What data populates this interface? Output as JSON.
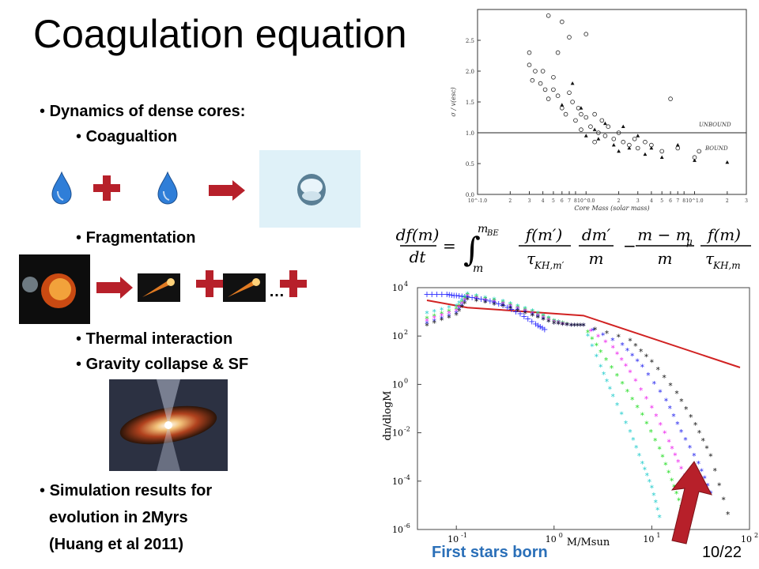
{
  "slide": {
    "title": "Coagulation equation",
    "page": "10/22",
    "bullets": {
      "dynamics": "Dynamics of  dense cores:",
      "coag": "Coagualtion",
      "frag": "Fragmentation",
      "thermal": "Thermal interaction",
      "gravity": "Gravity collapse & SF",
      "sim1": "Simulation results for",
      "sim2": "evolution in 2Myrs",
      "sim3": "(Huang et al 2011)"
    },
    "ellipsis": "…",
    "first_stars": "First stars born",
    "colors": {
      "plus": "#b7202a",
      "arrow": "#b7202a",
      "drop": "#2f7ed8",
      "label": "#2a6fb8"
    }
  },
  "equation": {
    "lhs_num": "df(m)",
    "lhs_den": "dt",
    "int_upper": "m",
    "int_upper_sub": "BE",
    "int_lower": "m",
    "f1_num": "f(m′)",
    "f1_den": "τ",
    "f1_den_sub": "KH,m′",
    "dm_num": "dm′",
    "dm_den": "m",
    "f2_num": "m − m",
    "f2_num_sub": "μ",
    "f2_den": "m",
    "f3_num": "f(m)",
    "f3_den": "τ",
    "f3_den_sub": "KH,m"
  },
  "chart_data": [
    {
      "type": "scatter",
      "xlabel": "Core Mass (solar mass)",
      "ylabel": "σ / v(esc)",
      "xscale": "log",
      "xlim": [
        0.1,
        30
      ],
      "ylim": [
        0,
        3
      ],
      "yticks": [
        "0.0",
        "0.5",
        "1.0",
        "1.5",
        "2.0",
        "2.5"
      ],
      "xtick_labels": [
        "10^-1.0",
        "2",
        "3",
        "4",
        "5",
        "6",
        "7",
        "8",
        "10^0.0",
        "2",
        "3",
        "4",
        "5",
        "6",
        "7",
        "8",
        "10^1.0",
        "2",
        "3"
      ],
      "annotations": [
        "UNBOUND",
        "BOUND"
      ],
      "threshold_y": 1.0,
      "series": [
        {
          "marker": "circle",
          "points": [
            [
              0.3,
              2.3
            ],
            [
              0.3,
              2.1
            ],
            [
              0.32,
              1.85
            ],
            [
              0.34,
              2.0
            ],
            [
              0.38,
              1.8
            ],
            [
              0.4,
              2.0
            ],
            [
              0.42,
              1.7
            ],
            [
              0.45,
              2.9
            ],
            [
              0.45,
              1.55
            ],
            [
              0.5,
              1.9
            ],
            [
              0.55,
              1.6
            ],
            [
              0.6,
              2.8
            ],
            [
              0.6,
              1.4
            ],
            [
              0.65,
              1.3
            ],
            [
              0.7,
              1.65
            ],
            [
              0.75,
              1.5
            ],
            [
              0.8,
              1.2
            ],
            [
              0.85,
              1.4
            ],
            [
              0.9,
              1.3
            ],
            [
              1.0,
              1.25
            ],
            [
              1.1,
              1.1
            ],
            [
              1.2,
              1.3
            ],
            [
              1.3,
              1.0
            ],
            [
              1.4,
              1.2
            ],
            [
              1.5,
              0.95
            ],
            [
              1.6,
              1.1
            ],
            [
              1.8,
              0.9
            ],
            [
              2.0,
              1.0
            ],
            [
              2.2,
              0.85
            ],
            [
              2.5,
              0.8
            ],
            [
              2.8,
              0.9
            ],
            [
              3.0,
              0.75
            ],
            [
              3.5,
              0.85
            ],
            [
              4.0,
              0.8
            ],
            [
              5.0,
              0.7
            ],
            [
              6.0,
              1.55
            ],
            [
              7.0,
              0.75
            ],
            [
              10.0,
              0.6
            ],
            [
              11.0,
              0.7
            ],
            [
              0.55,
              2.3
            ],
            [
              0.7,
              2.55
            ],
            [
              1.0,
              2.6
            ],
            [
              0.5,
              1.7
            ],
            [
              0.9,
              1.05
            ],
            [
              1.2,
              0.85
            ]
          ]
        },
        {
          "marker": "triangle",
          "points": [
            [
              0.75,
              1.8
            ],
            [
              0.9,
              1.4
            ],
            [
              1.0,
              0.95
            ],
            [
              1.3,
              0.9
            ],
            [
              1.5,
              1.15
            ],
            [
              1.8,
              0.8
            ],
            [
              2.2,
              1.1
            ],
            [
              2.5,
              0.75
            ],
            [
              3.0,
              0.95
            ],
            [
              3.5,
              0.65
            ],
            [
              4.0,
              0.75
            ],
            [
              5.0,
              0.6
            ],
            [
              7.0,
              0.8
            ],
            [
              10.0,
              0.55
            ],
            [
              20.0,
              0.52
            ],
            [
              2.0,
              0.7
            ],
            [
              1.2,
              1.05
            ],
            [
              0.6,
              1.45
            ]
          ]
        }
      ]
    },
    {
      "type": "line",
      "xlabel": "M/Msun",
      "ylabel": "dn/dlogM",
      "xscale": "log",
      "yscale": "log",
      "xlim": [
        0.04,
        100
      ],
      "ylim": [
        1e-06,
        10000.0
      ],
      "xticks": [
        0.1,
        1,
        10,
        100
      ],
      "yticks": [
        1e-06,
        0.0001,
        0.01,
        1.0,
        100.0,
        10000.0
      ],
      "x_tick_labels": [
        "10^-1",
        "10^0",
        "10^1",
        "10^2"
      ],
      "y_tick_labels": [
        "10^-6",
        "10^-4",
        "10^-2",
        "10^0",
        "10^2",
        "10^4"
      ],
      "series": [
        {
          "color": "#d12222",
          "marker": "line",
          "x": [
            0.05,
            0.13,
            2,
            80
          ],
          "y": [
            3000,
            1500,
            700,
            5
          ]
        },
        {
          "color": "#2a2aff",
          "marker": "plus",
          "x": [
            0.05,
            0.08,
            0.1,
            0.13,
            0.2,
            0.3,
            0.45,
            0.65,
            0.8
          ],
          "y": [
            5000,
            5000,
            4500,
            4000,
            3000,
            1800,
            800,
            300,
            180
          ]
        },
        {
          "color": "#22cccc",
          "marker": "star",
          "x": [
            0.05,
            0.1,
            0.13,
            0.3,
            0.6,
            1,
            1.5,
            2,
            3,
            4,
            6,
            8,
            10,
            12
          ],
          "y": [
            800,
            1600,
            5000,
            2500,
            1000,
            400,
            250,
            250,
            5,
            0.3,
            0.01,
            0.0005,
            5e-05,
            3e-06
          ]
        },
        {
          "color": "#22dd22",
          "marker": "star",
          "x": [
            0.05,
            0.1,
            0.13,
            0.3,
            0.6,
            1,
            1.5,
            2,
            3,
            5,
            8,
            12,
            16,
            20
          ],
          "y": [
            500,
            1200,
            4500,
            2200,
            900,
            380,
            250,
            250,
            20,
            1,
            0.05,
            0.002,
            0.0001,
            8e-06
          ]
        },
        {
          "color": "#ee22ee",
          "marker": "star",
          "x": [
            0.05,
            0.1,
            0.13,
            0.3,
            0.6,
            1,
            1.5,
            2,
            4,
            6,
            10,
            15,
            20,
            28
          ],
          "y": [
            400,
            1000,
            4000,
            2000,
            800,
            350,
            250,
            250,
            30,
            3,
            0.1,
            0.004,
            0.0003,
            2e-05
          ]
        },
        {
          "color": "#2222ee",
          "marker": "star",
          "x": [
            0.05,
            0.1,
            0.13,
            0.3,
            0.6,
            1,
            1.5,
            2,
            5,
            8,
            14,
            20,
            30,
            40
          ],
          "y": [
            300,
            800,
            3500,
            1800,
            700,
            300,
            250,
            250,
            40,
            5,
            0.2,
            0.01,
            0.0005,
            3e-05
          ]
        },
        {
          "color": "#111111",
          "marker": "star",
          "x": [
            0.05,
            0.1,
            0.13,
            0.3,
            0.6,
            1,
            1.5,
            2,
            6,
            10,
            18,
            28,
            40,
            60
          ],
          "y": [
            250,
            700,
            3000,
            1600,
            650,
            300,
            250,
            250,
            60,
            8,
            0.4,
            0.02,
            0.001,
            4e-06
          ]
        }
      ]
    }
  ]
}
